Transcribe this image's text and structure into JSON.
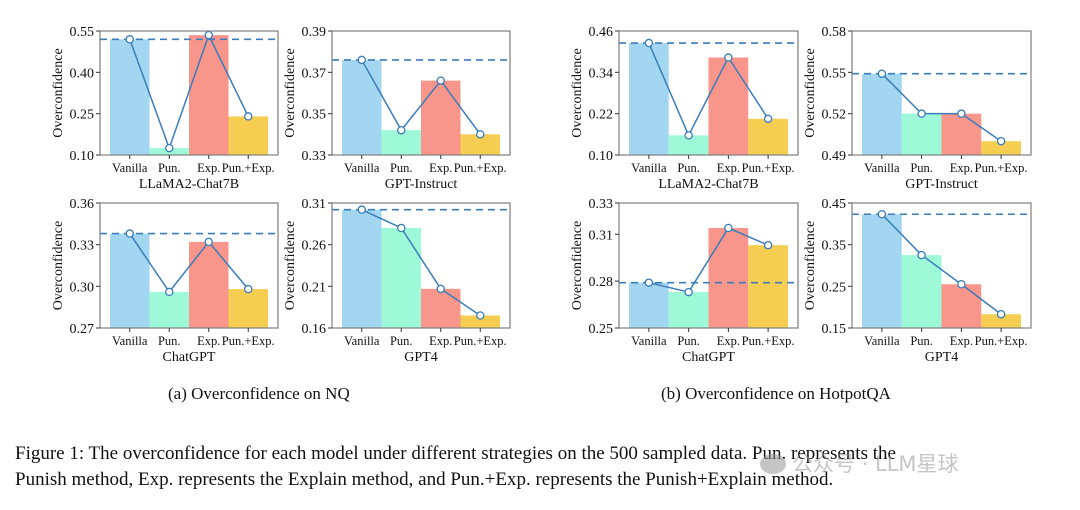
{
  "colors": {
    "vanilla": "#a3d7f1",
    "pun": "#9df9d8",
    "exp": "#f8968b",
    "pun_exp": "#f5cd50",
    "line": "#3b7dbb",
    "frame": "#7f7f7f"
  },
  "chart_data": [
    {
      "id": "nq-llama2",
      "group": "a",
      "type": "bar",
      "title": "",
      "xlabel": "LLaMA2-Chat7B",
      "ylabel": "Overconfidence",
      "categories": [
        "Vanilla",
        "Pun.",
        "Exp.",
        "Pun.+Exp."
      ],
      "values": [
        0.52,
        0.125,
        0.535,
        0.24
      ],
      "line_values": [
        0.52,
        0.125,
        0.535,
        0.24
      ],
      "baseline": 0.52,
      "ylim": [
        0.1,
        0.55
      ],
      "yticks": [
        "0.10",
        "0.25",
        "0.40",
        "0.55"
      ],
      "grid": false
    },
    {
      "id": "nq-gpt-instruct",
      "group": "a",
      "type": "bar",
      "title": "",
      "xlabel": "GPT-Instruct",
      "ylabel": "Overconfidence",
      "categories": [
        "Vanilla",
        "Pun.",
        "Exp.",
        "Pun.+Exp."
      ],
      "values": [
        0.376,
        0.342,
        0.366,
        0.34
      ],
      "line_values": [
        0.376,
        0.342,
        0.366,
        0.34
      ],
      "baseline": 0.376,
      "ylim": [
        0.33,
        0.39
      ],
      "yticks": [
        "0.33",
        "0.35",
        "0.37",
        "0.39"
      ],
      "grid": false
    },
    {
      "id": "nq-chatgpt",
      "group": "a",
      "type": "bar",
      "title": "",
      "xlabel": "ChatGPT",
      "ylabel": "Overconfidence",
      "categories": [
        "Vanilla",
        "Pun.",
        "Exp.",
        "Pun.+Exp."
      ],
      "values": [
        0.338,
        0.296,
        0.332,
        0.298
      ],
      "line_values": [
        0.338,
        0.296,
        0.332,
        0.298
      ],
      "baseline": 0.338,
      "ylim": [
        0.27,
        0.36
      ],
      "yticks": [
        "0.27",
        "0.30",
        "0.33",
        "0.36"
      ],
      "grid": false
    },
    {
      "id": "nq-gpt4",
      "group": "a",
      "type": "bar",
      "title": "",
      "xlabel": "GPT4",
      "ylabel": "Overconfidence",
      "categories": [
        "Vanilla",
        "Pun.",
        "Exp.",
        "Pun.+Exp."
      ],
      "values": [
        0.302,
        0.28,
        0.207,
        0.175
      ],
      "line_values": [
        0.302,
        0.28,
        0.207,
        0.175
      ],
      "baseline": 0.302,
      "ylim": [
        0.16,
        0.31
      ],
      "yticks": [
        "0.16",
        "0.21",
        "0.26",
        "0.31"
      ],
      "grid": false
    },
    {
      "id": "hotpot-llama2",
      "group": "b",
      "type": "bar",
      "title": "",
      "xlabel": "LLaMA2-Chat7B",
      "ylabel": "Overconfidence",
      "categories": [
        "Vanilla",
        "Pun.",
        "Exp.",
        "Pun.+Exp."
      ],
      "values": [
        0.425,
        0.157,
        0.383,
        0.205
      ],
      "line_values": [
        0.425,
        0.157,
        0.383,
        0.205
      ],
      "baseline": 0.425,
      "ylim": [
        0.1,
        0.46
      ],
      "yticks": [
        "0.10",
        "0.22",
        "0.34",
        "0.46"
      ],
      "grid": false
    },
    {
      "id": "hotpot-gpt-instruct",
      "group": "b",
      "type": "bar",
      "title": "",
      "xlabel": "GPT-Instruct",
      "ylabel": "Overconfidence",
      "categories": [
        "Vanilla",
        "Pun.",
        "Exp.",
        "Pun.+Exp."
      ],
      "values": [
        0.549,
        0.52,
        0.52,
        0.5
      ],
      "line_values": [
        0.549,
        0.52,
        0.52,
        0.5
      ],
      "baseline": 0.549,
      "ylim": [
        0.49,
        0.58
      ],
      "yticks": [
        "0.49",
        "0.52",
        "0.55",
        "0.58"
      ],
      "grid": false
    },
    {
      "id": "hotpot-chatgpt",
      "group": "b",
      "type": "bar",
      "title": "",
      "xlabel": "ChatGPT",
      "ylabel": "Overconfidence",
      "categories": [
        "Vanilla",
        "Pun.",
        "Exp.",
        "Pun.+Exp."
      ],
      "values": [
        0.279,
        0.273,
        0.314,
        0.303
      ],
      "line_values": [
        0.279,
        0.273,
        0.314,
        0.303
      ],
      "baseline": 0.279,
      "ylim": [
        0.25,
        0.33
      ],
      "yticks": [
        "0.25",
        "0.28",
        "0.31",
        "0.33"
      ],
      "ytick_values": [
        0.25,
        0.28,
        0.31,
        0.33
      ],
      "grid": false
    },
    {
      "id": "hotpot-gpt4",
      "group": "b",
      "type": "bar",
      "title": "",
      "xlabel": "GPT4",
      "ylabel": "Overconfidence",
      "categories": [
        "Vanilla",
        "Pun.",
        "Exp.",
        "Pun.+Exp."
      ],
      "values": [
        0.423,
        0.325,
        0.255,
        0.183
      ],
      "line_values": [
        0.423,
        0.325,
        0.255,
        0.183
      ],
      "baseline": 0.423,
      "ylim": [
        0.15,
        0.45
      ],
      "yticks": [
        "0.15",
        "0.25",
        "0.35",
        "0.45"
      ],
      "grid": false
    }
  ],
  "subcaptions": {
    "a": "(a)  Overconfidence on NQ",
    "b": "(b)  Overconfidence on HotpotQA"
  },
  "caption": {
    "line1": "Figure 1: The overconfidence for each model under different strategies on the 500 sampled data. Pun. represents the",
    "line2": "Punish method, Exp. represents the Explain method, and Pun.+Exp. represents the Punish+Explain method."
  },
  "watermark": "公众号 · LLM星球"
}
